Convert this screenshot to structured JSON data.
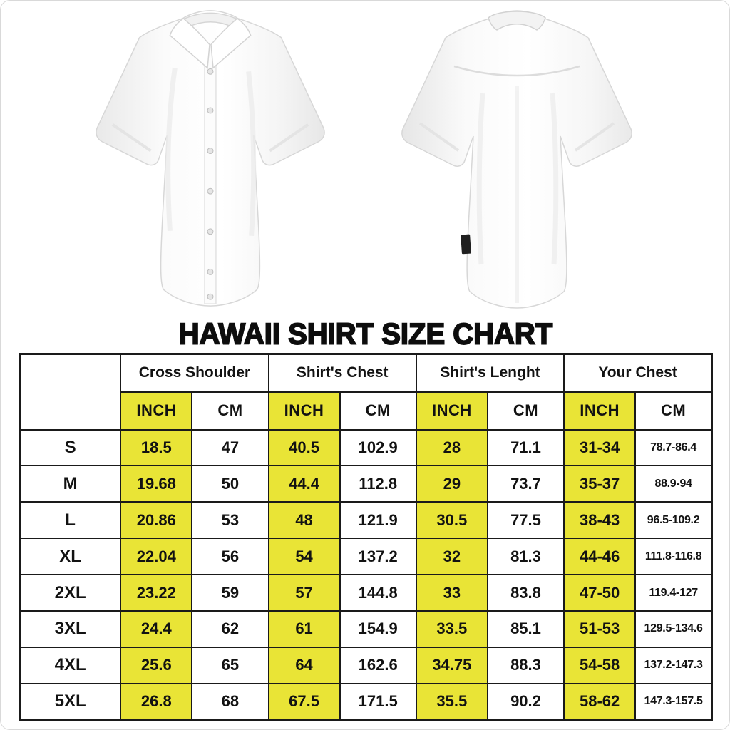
{
  "page": {
    "title": "HAWAII SHIRT SIZE CHART"
  },
  "images": {
    "front_shirt": "white-short-sleeve-button-shirt-front",
    "back_shirt": "white-short-sleeve-button-shirt-back"
  },
  "colors": {
    "highlight_yellow": "#e9e436",
    "table_border": "#1a1a1a",
    "background": "#ffffff"
  },
  "chart_data": {
    "type": "table",
    "title": "HAWAII SHIRT SIZE CHART",
    "corner_label": "",
    "group_headers": [
      "Cross Shoulder",
      "Shirt's Chest",
      "Shirt's Lenght",
      "Your Chest"
    ],
    "unit_headers": [
      "INCH",
      "CM",
      "INCH",
      "CM",
      "INCH",
      "CM",
      "INCH",
      "CM"
    ],
    "highlighted_unit": "INCH",
    "rows": [
      [
        "S",
        "18.5",
        "47",
        "40.5",
        "102.9",
        "28",
        "71.1",
        "31-34",
        "78.7-86.4"
      ],
      [
        "M",
        "19.68",
        "50",
        "44.4",
        "112.8",
        "29",
        "73.7",
        "35-37",
        "88.9-94"
      ],
      [
        "L",
        "20.86",
        "53",
        "48",
        "121.9",
        "30.5",
        "77.5",
        "38-43",
        "96.5-109.2"
      ],
      [
        "XL",
        "22.04",
        "56",
        "54",
        "137.2",
        "32",
        "81.3",
        "44-46",
        "111.8-116.8"
      ],
      [
        "2XL",
        "23.22",
        "59",
        "57",
        "144.8",
        "33",
        "83.8",
        "47-50",
        "119.4-127"
      ],
      [
        "3XL",
        "24.4",
        "62",
        "61",
        "154.9",
        "33.5",
        "85.1",
        "51-53",
        "129.5-134.6"
      ],
      [
        "4XL",
        "25.6",
        "65",
        "64",
        "162.6",
        "34.75",
        "88.3",
        "54-58",
        "137.2-147.3"
      ],
      [
        "5XL",
        "26.8",
        "68",
        "67.5",
        "171.5",
        "35.5",
        "90.2",
        "58-62",
        "147.3-157.5"
      ]
    ]
  }
}
